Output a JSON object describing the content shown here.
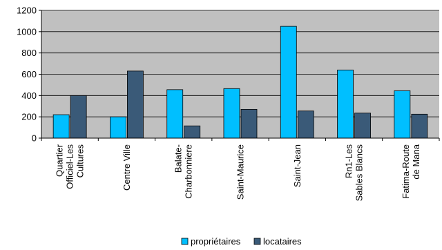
{
  "chart_data": {
    "type": "bar",
    "categories": [
      [
        "Quartier",
        "Officiel-Les",
        "Cultures"
      ],
      [
        "Centre Ville"
      ],
      [
        "Balate-",
        "Charbonniere"
      ],
      [
        "Saint-Maurice"
      ],
      [
        "Saint-Jean"
      ],
      [
        "Rn1-Les",
        "Sables Blancs"
      ],
      [
        "Fatima-Route",
        "de Mana"
      ]
    ],
    "series": [
      {
        "name": "propriétaires",
        "color": "#00BFFF",
        "values": [
          220,
          200,
          455,
          465,
          1050,
          640,
          445
        ]
      },
      {
        "name": "locataires",
        "color": "#3A5A78",
        "values": [
          400,
          630,
          115,
          270,
          255,
          235,
          225
        ]
      }
    ],
    "ylim": [
      0,
      1200
    ],
    "yticks": [
      0,
      200,
      400,
      600,
      800,
      1000,
      1200
    ],
    "grid": true,
    "plot_background": "#C0C0C0",
    "legend_position": "bottom"
  }
}
